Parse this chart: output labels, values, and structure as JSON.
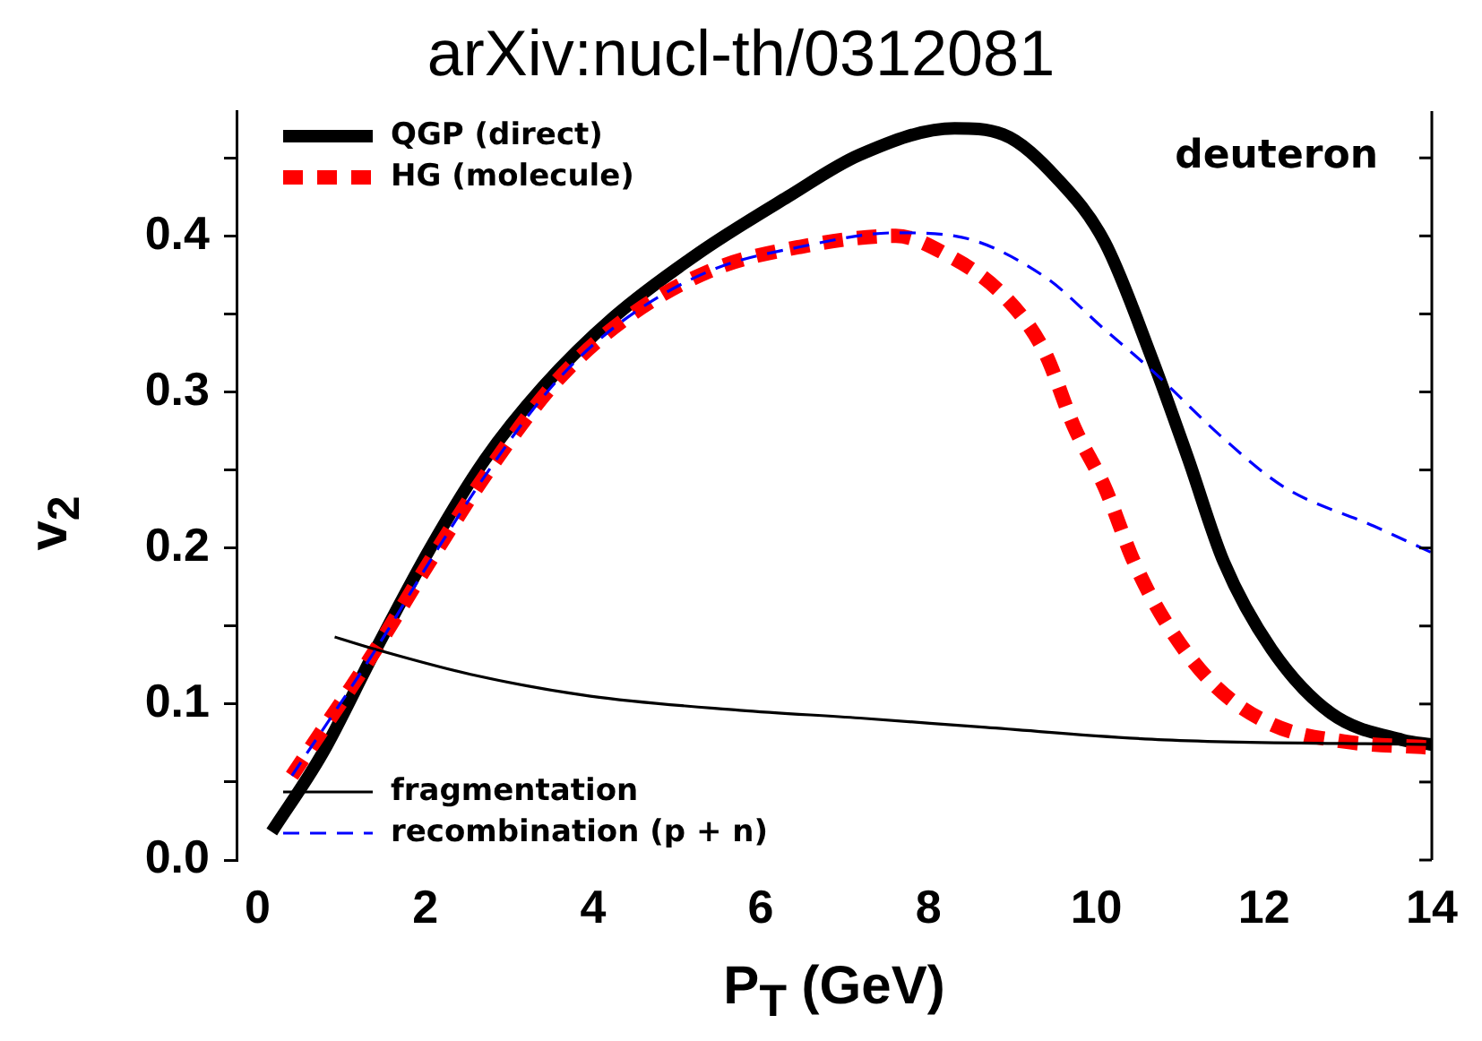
{
  "chart_data": {
    "type": "line",
    "title": "arXiv:nucl-th/0312081",
    "xlabel": "P$_{T}$ (GeV)",
    "ylabel": "v$_{2}$",
    "annotations": [
      "deuteron"
    ],
    "xlim": [
      -0.25,
      14
    ],
    "xticks": [
      0,
      2,
      4,
      6,
      8,
      10,
      12,
      14
    ],
    "ylim": [
      0,
      0.48
    ],
    "yticks": [
      {
        "value": 0,
        "label": "0.0"
      },
      {
        "value": 0.05,
        "label": null
      },
      {
        "value": 0.1,
        "label": "0.1"
      },
      {
        "value": 0.15,
        "label": null
      },
      {
        "value": 0.2,
        "label": "0.2"
      },
      {
        "value": 0.25,
        "label": null
      },
      {
        "value": 0.3,
        "label": "0.3"
      },
      {
        "value": 0.35,
        "label": null
      },
      {
        "value": 0.4,
        "label": "0.4"
      },
      {
        "value": 0.45,
        "label": null
      }
    ],
    "legend": "top left",
    "marker": "none",
    "series": [
      {
        "name": "QGP (direct)",
        "color": "#000000",
        "line_style": "solid",
        "x": [
          0.17,
          0.77,
          1.41,
          2.05,
          2.69,
          3.4,
          4.25,
          5.26,
          6.32,
          7.18,
          8.31,
          8.89,
          9.53,
          10.1,
          10.66,
          11.09,
          11.52,
          12.09,
          12.8,
          13.65,
          14
        ],
        "values": [
          0.018,
          0.068,
          0.135,
          0.199,
          0.255,
          0.303,
          0.348,
          0.389,
          0.425,
          0.452,
          0.469,
          0.465,
          0.437,
          0.396,
          0.322,
          0.258,
          0.191,
          0.135,
          0.094,
          0.077,
          0.074
        ]
      },
      {
        "name": "HG (molecule)",
        "color": "#ff0000",
        "line_style": "dashed",
        "x": [
          0.41,
          1.41,
          2.05,
          2.76,
          3.55,
          4.34,
          5.41,
          6.47,
          7.61,
          8.18,
          8.89,
          9.38,
          9.74,
          10.1,
          10.45,
          10.81,
          11.39,
          12.09,
          12.95,
          14
        ],
        "values": [
          0.054,
          0.135,
          0.191,
          0.25,
          0.306,
          0.345,
          0.378,
          0.393,
          0.4,
          0.389,
          0.362,
          0.326,
          0.277,
          0.239,
          0.191,
          0.154,
          0.113,
          0.087,
          0.076,
          0.072
        ]
      },
      {
        "name": "fragmentation",
        "color": "#000000",
        "line_style": "solid",
        "x": [
          0.92,
          1.41,
          2.54,
          3.97,
          5.75,
          7.18,
          8.68,
          10.81,
          14
        ],
        "values": [
          0.143,
          0.135,
          0.119,
          0.105,
          0.096,
          0.091,
          0.085,
          0.077,
          0.074
        ]
      },
      {
        "name": "recombination (p + n)",
        "color": "#0000ff",
        "line_style": "dashed",
        "x": [
          0.41,
          1.41,
          2.05,
          2.76,
          3.55,
          4.34,
          5.41,
          6.47,
          7.61,
          8.31,
          9.38,
          10.1,
          10.66,
          11.52,
          12.24,
          13.31,
          14
        ],
        "values": [
          0.054,
          0.135,
          0.191,
          0.25,
          0.306,
          0.345,
          0.378,
          0.393,
          0.402,
          0.4,
          0.374,
          0.34,
          0.314,
          0.27,
          0.239,
          0.214,
          0.197
        ]
      }
    ]
  }
}
